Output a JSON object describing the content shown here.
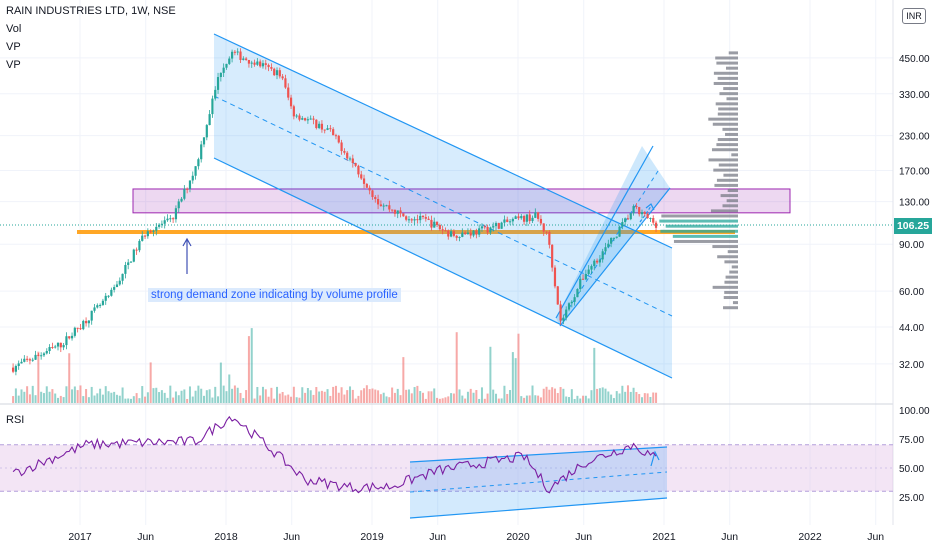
{
  "header": {
    "title": "RAIN INDUSTRIES LTD, 1W, NSE",
    "indicators": [
      "Vol",
      "VP",
      "VP"
    ],
    "currency": "INR"
  },
  "annotation": "strong demand zone indicating by volume profile",
  "current_price": "106.25",
  "rsi_label": "RSI",
  "colors": {
    "up": "#26a69a",
    "down": "#ef5350",
    "channel": "#2196f3",
    "zone": "#9c27b0",
    "support": "#ff9800",
    "rsi": "#7b1fa2",
    "profile": "#787b86"
  },
  "chart_data": [
    {
      "type": "candlestick",
      "title": "RAIN INDUSTRIES LTD, 1W, NSE",
      "y_scale": "log",
      "yticks": [
        "450.00",
        "330.00",
        "230.00",
        "170.00",
        "130.00",
        "90.00",
        "60.00",
        "44.00",
        "32.00"
      ],
      "xticks": [
        "2017",
        "Jun",
        "2018",
        "Jun",
        "2019",
        "Jun",
        "2020",
        "Jun",
        "2021",
        "Jun",
        "2022",
        "Jun"
      ],
      "price_path": [
        [
          "2016-07",
          31
        ],
        [
          "2016-11",
          38
        ],
        [
          "2017-03",
          58
        ],
        [
          "2017-06",
          102
        ],
        [
          "2017-08",
          110
        ],
        [
          "2017-10",
          175
        ],
        [
          "2017-12",
          400
        ],
        [
          "2018-01",
          470
        ],
        [
          "2018-03",
          430
        ],
        [
          "2018-05",
          390
        ],
        [
          "2018-06",
          280
        ],
        [
          "2018-09",
          240
        ],
        [
          "2018-11",
          180
        ],
        [
          "2019-01",
          130
        ],
        [
          "2019-03",
          115
        ],
        [
          "2019-05",
          110
        ],
        [
          "2019-07",
          98
        ],
        [
          "2019-09",
          100
        ],
        [
          "2019-12",
          110
        ],
        [
          "2020-02",
          115
        ],
        [
          "2020-03",
          95
        ],
        [
          "2020-04",
          46
        ],
        [
          "2020-06",
          70
        ],
        [
          "2020-08",
          90
        ],
        [
          "2020-10",
          122
        ],
        [
          "2020-12",
          106.25
        ]
      ],
      "demand_zone": [
        118,
        145
      ],
      "support_level": 100,
      "last_price": 106.25
    },
    {
      "type": "line",
      "name": "RSI",
      "yticks": [
        "100.00",
        "75.00",
        "50.00",
        "25.00"
      ],
      "band": [
        30,
        70
      ],
      "path": [
        [
          "2016-07",
          45
        ],
        [
          "2017-01",
          70
        ],
        [
          "2017-06",
          72
        ],
        [
          "2017-10",
          73
        ],
        [
          "2018-01",
          95
        ],
        [
          "2018-04",
          68
        ],
        [
          "2018-07",
          40
        ],
        [
          "2018-11",
          33
        ],
        [
          "2019-02",
          34
        ],
        [
          "2019-06",
          48
        ],
        [
          "2019-10",
          55
        ],
        [
          "2020-01",
          60
        ],
        [
          "2020-03",
          32
        ],
        [
          "2020-06",
          55
        ],
        [
          "2020-10",
          70
        ],
        [
          "2020-12",
          57
        ]
      ]
    }
  ]
}
